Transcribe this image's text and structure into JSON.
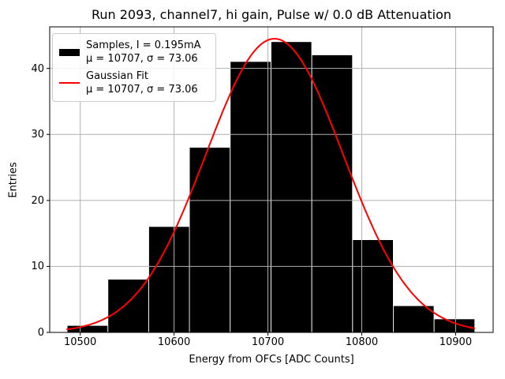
{
  "chart_data": {
    "type": "bar",
    "title": "Run 2093, channel7, hi gain, Pulse w/ 0.0 dB Attenuation",
    "xlabel": "Energy from OFCs [ADC Counts]",
    "ylabel": "Entries",
    "xlim": [
      10467.5,
      10940.0
    ],
    "ylim": [
      0,
      46.3
    ],
    "x_ticks": [
      10500,
      10600,
      10700,
      10800,
      10900
    ],
    "y_ticks": [
      0,
      10,
      20,
      30,
      40
    ],
    "grid": true,
    "legend_position": "upper-left",
    "histogram": {
      "bin_start": 10486,
      "bin_width": 43.45,
      "counts": [
        1,
        8,
        16,
        28,
        41,
        44,
        42,
        14,
        4,
        2
      ],
      "color": "#000000"
    },
    "fit": {
      "type": "gaussian",
      "mu": 10707,
      "sigma": 73.06,
      "amplitude": 44.5,
      "domain": [
        10486,
        10920.5
      ],
      "color": "#ff0000"
    },
    "legend": {
      "entries": [
        {
          "swatch": "patch",
          "color": "#000000",
          "lines": [
            "Samples, I = 0.195mA",
            "μ = 10707, σ = 73.06"
          ]
        },
        {
          "swatch": "line",
          "color": "#ff0000",
          "lines": [
            "Gaussian Fit",
            "μ = 10707, σ = 73.06"
          ]
        }
      ]
    }
  },
  "colors": {
    "background": "#ffffff",
    "grid": "#b0b0b0",
    "spine": "#000000",
    "legend_border": "#cccccc"
  }
}
